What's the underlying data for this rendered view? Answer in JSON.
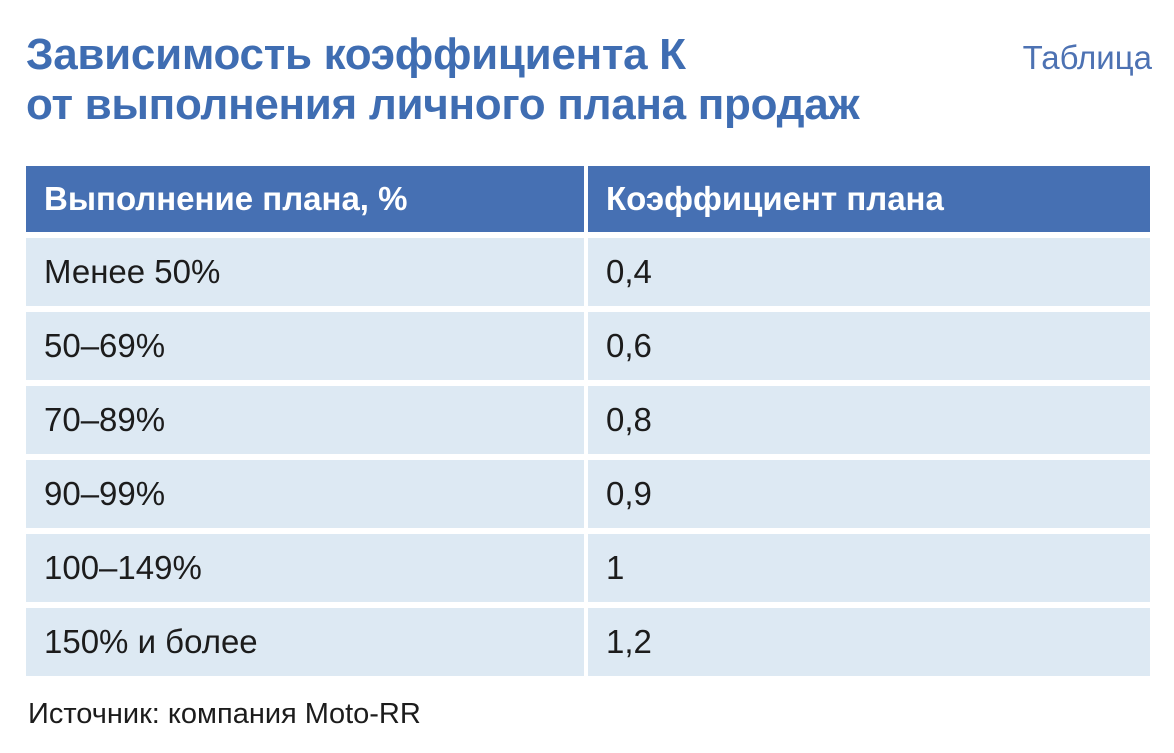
{
  "title": {
    "line1": "Зависимость коэффициента К",
    "line2": "от выполнения личного плана продаж"
  },
  "label": "Таблица",
  "table": {
    "columns": [
      "Выполнение плана, %",
      "Коэффициент плана"
    ],
    "rows": [
      {
        "plan": "Менее 50%",
        "coefficient": "0,4"
      },
      {
        "plan": "50–69%",
        "coefficient": "0,6"
      },
      {
        "plan": "70–89%",
        "coefficient": "0,8"
      },
      {
        "plan": "90–99%",
        "coefficient": "0,9"
      },
      {
        "plan": "100–149%",
        "coefficient": "1"
      },
      {
        "plan": "150% и более",
        "coefficient": "1,2"
      }
    ]
  },
  "source": "Источник: компания Moto-RR",
  "colors": {
    "title": "#3f6db2",
    "header_background": "#4670b3",
    "row_background": "#dde9f3"
  }
}
